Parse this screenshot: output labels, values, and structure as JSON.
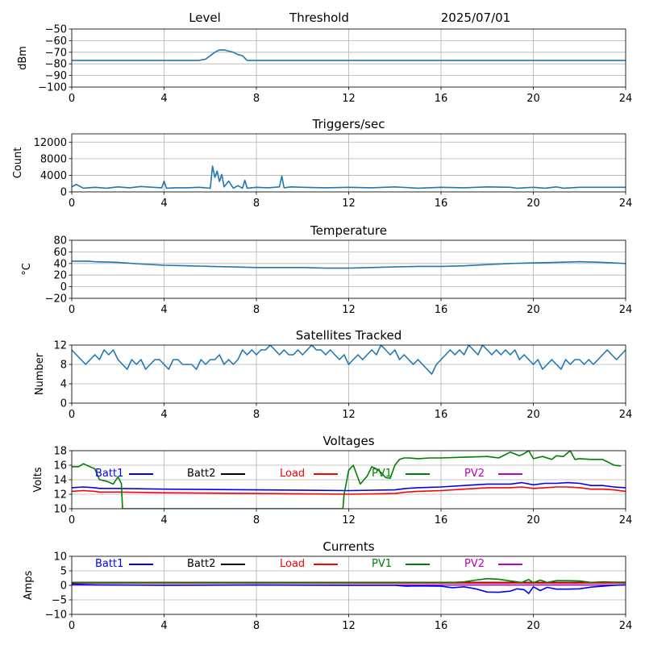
{
  "header": {
    "level": "Level",
    "threshold": "Threshold",
    "date": "2025/07/01"
  },
  "chart_data": [
    {
      "type": "line",
      "title": "",
      "xlabel": "",
      "ylabel": "dBm",
      "xlim": [
        0,
        24
      ],
      "ylim": [
        -100,
        -50
      ],
      "xticks": [
        "0",
        "4",
        "8",
        "12",
        "16",
        "20",
        "24"
      ],
      "yticks": [
        "−100",
        "−90",
        "−80",
        "−70",
        "−60",
        "−50"
      ],
      "grid": true,
      "series": [
        {
          "color": "#1f77b4",
          "x": [
            0,
            1,
            2,
            3,
            4,
            5,
            5.5,
            5.8,
            6.0,
            6.2,
            6.4,
            6.6,
            6.8,
            7.0,
            7.2,
            7.4,
            7.6,
            8,
            10,
            12,
            14,
            16,
            18,
            20,
            22,
            24
          ],
          "y": [
            -77,
            -77,
            -77,
            -77,
            -77,
            -77,
            -77,
            -76,
            -73,
            -70,
            -68,
            -68,
            -69,
            -70,
            -72,
            -73,
            -77,
            -77,
            -77,
            -77,
            -77,
            -77,
            -77,
            -77,
            -77,
            -77
          ]
        }
      ]
    },
    {
      "type": "line",
      "title": "Triggers/sec",
      "xlabel": "",
      "ylabel": "Count",
      "xlim": [
        0,
        24
      ],
      "ylim": [
        0,
        14000
      ],
      "xticks": [
        "0",
        "4",
        "8",
        "12",
        "16",
        "20",
        "24"
      ],
      "yticks": [
        "0",
        "4000",
        "8000",
        "12000"
      ],
      "grid": true,
      "series": [
        {
          "color": "#1f77b4",
          "x": [
            0,
            0.2,
            0.5,
            1,
            1.5,
            2,
            2.5,
            3,
            3.5,
            3.9,
            4.0,
            4.1,
            4.5,
            5,
            5.5,
            6.0,
            6.1,
            6.2,
            6.3,
            6.4,
            6.5,
            6.6,
            6.8,
            7.0,
            7.2,
            7.4,
            7.5,
            7.6,
            8,
            8.5,
            9.0,
            9.1,
            9.2,
            9.5,
            10,
            11,
            12,
            13,
            14,
            15,
            16,
            17,
            18,
            19,
            19.3,
            20,
            20.5,
            21,
            21.3,
            22,
            23,
            24
          ],
          "y": [
            1200,
            1800,
            900,
            1100,
            900,
            1200,
            1000,
            1300,
            1100,
            1000,
            2600,
            900,
            1000,
            1000,
            1100,
            900,
            6200,
            3500,
            5000,
            2500,
            4200,
            1200,
            2600,
            900,
            1500,
            900,
            2800,
            900,
            1100,
            1000,
            1200,
            3800,
            1000,
            1200,
            1100,
            1000,
            1100,
            1000,
            1200,
            900,
            1100,
            1000,
            1200,
            1100,
            900,
            1100,
            900,
            1200,
            900,
            1100,
            1100,
            1100
          ]
        }
      ]
    },
    {
      "type": "line",
      "title": "Temperature",
      "xlabel": "",
      "ylabel": "°C",
      "xlim": [
        0,
        24
      ],
      "ylim": [
        -20,
        80
      ],
      "xticks": [
        "0",
        "4",
        "8",
        "12",
        "16",
        "20",
        "24"
      ],
      "yticks": [
        "−20",
        "0",
        "20",
        "40",
        "60",
        "80"
      ],
      "grid": true,
      "series": [
        {
          "color": "#1f77b4",
          "x": [
            0,
            0.7,
            1,
            2,
            3,
            4,
            5,
            6,
            7,
            8,
            9,
            10,
            11,
            12,
            13,
            14,
            15,
            16,
            17,
            18,
            19,
            20,
            21,
            22,
            23,
            24
          ],
          "y": [
            44,
            44,
            43,
            42,
            39,
            37,
            36,
            35,
            34,
            33,
            33,
            33,
            32,
            32,
            33,
            34,
            35,
            35,
            36,
            38,
            40,
            41,
            42,
            43,
            42,
            40
          ]
        }
      ]
    },
    {
      "type": "line",
      "title": "Satellites Tracked",
      "xlabel": "",
      "ylabel": "Number",
      "xlim": [
        0,
        24
      ],
      "ylim": [
        0,
        12
      ],
      "xticks": [
        "0",
        "4",
        "8",
        "12",
        "16",
        "20",
        "24"
      ],
      "yticks": [
        "0",
        "4",
        "8",
        "12"
      ],
      "grid": true,
      "series": [
        {
          "color": "#1f77b4",
          "x": [
            0,
            0.2,
            0.4,
            0.6,
            0.8,
            1.0,
            1.2,
            1.4,
            1.6,
            1.8,
            2.0,
            2.2,
            2.4,
            2.6,
            2.8,
            3.0,
            3.2,
            3.4,
            3.6,
            3.8,
            4.0,
            4.2,
            4.4,
            4.6,
            4.8,
            5.0,
            5.2,
            5.4,
            5.6,
            5.8,
            6.0,
            6.2,
            6.4,
            6.6,
            6.8,
            7.0,
            7.2,
            7.4,
            7.6,
            7.8,
            8.0,
            8.2,
            8.4,
            8.6,
            8.8,
            9.0,
            9.2,
            9.4,
            9.6,
            9.8,
            10.0,
            10.2,
            10.4,
            10.6,
            10.8,
            11.0,
            11.2,
            11.4,
            11.6,
            11.8,
            12.0,
            12.2,
            12.4,
            12.6,
            12.8,
            13.0,
            13.2,
            13.4,
            13.6,
            13.8,
            14.0,
            14.2,
            14.4,
            14.6,
            14.8,
            15.0,
            15.2,
            15.4,
            15.6,
            15.8,
            16.0,
            16.2,
            16.4,
            16.6,
            16.8,
            17.0,
            17.2,
            17.4,
            17.6,
            17.8,
            18.0,
            18.2,
            18.4,
            18.6,
            18.8,
            19.0,
            19.2,
            19.4,
            19.6,
            19.8,
            20.0,
            20.2,
            20.4,
            20.6,
            20.8,
            21.0,
            21.2,
            21.4,
            21.6,
            21.8,
            22.0,
            22.2,
            22.4,
            22.6,
            22.8,
            23.0,
            23.2,
            23.4,
            23.6,
            23.8,
            24.0
          ],
          "y": [
            11,
            10,
            9,
            8,
            9,
            10,
            9,
            11,
            10,
            11,
            9,
            8,
            7,
            9,
            8,
            9,
            7,
            8,
            9,
            9,
            8,
            7,
            9,
            9,
            8,
            8,
            8,
            7,
            9,
            8,
            9,
            9,
            10,
            8,
            9,
            8,
            9,
            11,
            10,
            11,
            10,
            11,
            11,
            12,
            11,
            10,
            11,
            10,
            10,
            11,
            10,
            11,
            12,
            11,
            11,
            10,
            11,
            10,
            9,
            10,
            8,
            9,
            10,
            9,
            10,
            11,
            10,
            12,
            11,
            10,
            11,
            9,
            10,
            9,
            8,
            9,
            8,
            7,
            6,
            8,
            9,
            10,
            11,
            10,
            11,
            10,
            12,
            11,
            10,
            12,
            11,
            10,
            11,
            10,
            11,
            10,
            11,
            9,
            10,
            9,
            8,
            9,
            7,
            8,
            9,
            8,
            7,
            9,
            8,
            9,
            9,
            8,
            9,
            8,
            9,
            10,
            11,
            10,
            9,
            10,
            11
          ]
        }
      ]
    },
    {
      "type": "line",
      "title": "Voltages",
      "xlabel": "",
      "ylabel": "Volts",
      "xlim": [
        0,
        24
      ],
      "ylim": [
        10,
        18
      ],
      "xticks": [
        "0",
        "4",
        "8",
        "12",
        "16",
        "20",
        "24"
      ],
      "yticks": [
        "10",
        "12",
        "14",
        "16",
        "18"
      ],
      "grid": true,
      "legend": [
        "Batt1",
        "Batt2",
        "Load",
        "PV1",
        "PV2"
      ],
      "legend_colors": [
        "#0000ff",
        "#000000",
        "#ff0000",
        "#008000",
        "#bf00bf"
      ],
      "series": [
        {
          "name": "Batt1",
          "color": "#0000ff",
          "x": [
            0,
            0.5,
            1,
            1.2,
            2,
            4,
            8,
            12,
            14,
            14.5,
            15,
            16,
            17,
            18,
            19,
            19.5,
            20,
            20.5,
            21,
            21.5,
            22,
            22.5,
            23,
            23.5,
            24
          ],
          "y": [
            12.9,
            13.0,
            12.9,
            12.8,
            12.8,
            12.7,
            12.6,
            12.5,
            12.6,
            12.8,
            12.9,
            13.0,
            13.2,
            13.4,
            13.4,
            13.6,
            13.3,
            13.5,
            13.5,
            13.6,
            13.5,
            13.2,
            13.2,
            13.0,
            12.9
          ]
        },
        {
          "name": "Load",
          "color": "#ff0000",
          "x": [
            0,
            0.5,
            1,
            1.2,
            2,
            4,
            8,
            12,
            14,
            14.5,
            15,
            16,
            17,
            18,
            19,
            19.5,
            20,
            20.5,
            21,
            21.5,
            22,
            22.5,
            23,
            23.5,
            24
          ],
          "y": [
            12.4,
            12.5,
            12.4,
            12.3,
            12.3,
            12.2,
            12.1,
            12.0,
            12.1,
            12.3,
            12.4,
            12.5,
            12.7,
            12.9,
            12.9,
            13.0,
            12.8,
            12.9,
            13.0,
            13.0,
            12.9,
            12.7,
            12.7,
            12.6,
            12.4
          ]
        },
        {
          "name": "PV1",
          "color": "#008000",
          "x": [
            0,
            0.3,
            0.5,
            1.0,
            1.2,
            1.5,
            1.8,
            2.0,
            2.15,
            2.2,
            11.75,
            11.8,
            12.0,
            12.2,
            12.5,
            12.8,
            13.0,
            13.2,
            13.4,
            13.6,
            13.8,
            14.0,
            14.2,
            14.4,
            14.6,
            15.0,
            15.5,
            16.0,
            17.0,
            18.0,
            18.5,
            19.0,
            19.4,
            19.6,
            19.8,
            20.0,
            20.4,
            20.8,
            21.0,
            21.3,
            21.6,
            21.8,
            22.0,
            22.5,
            23.0,
            23.5,
            23.8
          ],
          "y": [
            15.8,
            15.8,
            16.2,
            15.5,
            14.0,
            13.8,
            13.4,
            14.4,
            13.5,
            10.0,
            10.0,
            12.0,
            15.3,
            16.0,
            13.4,
            14.5,
            15.8,
            15.5,
            15.0,
            14.3,
            14.2,
            16.0,
            16.8,
            17.0,
            17.0,
            16.9,
            17.0,
            17.0,
            17.1,
            17.2,
            17.0,
            17.8,
            17.3,
            17.6,
            18.0,
            16.9,
            17.2,
            16.8,
            17.3,
            17.2,
            18.0,
            16.8,
            16.9,
            16.8,
            16.8,
            16.0,
            15.9
          ]
        },
        {
          "name": "Batt2",
          "color": "#000000",
          "x": [],
          "y": []
        },
        {
          "name": "PV2",
          "color": "#bf00bf",
          "x": [],
          "y": []
        }
      ]
    },
    {
      "type": "line",
      "title": "Currents",
      "xlabel": "",
      "ylabel": "Amps",
      "xlim": [
        0,
        24
      ],
      "ylim": [
        -10,
        10
      ],
      "xticks": [
        "0",
        "4",
        "8",
        "12",
        "16",
        "20",
        "24"
      ],
      "yticks": [
        "−10",
        "−5",
        "0",
        "5",
        "10"
      ],
      "grid": true,
      "legend": [
        "Batt1",
        "Batt2",
        "Load",
        "PV1",
        "PV2"
      ],
      "legend_colors": [
        "#0000ff",
        "#000000",
        "#ff0000",
        "#008000",
        "#bf00bf"
      ],
      "series": [
        {
          "name": "Batt2",
          "color": "#000000",
          "x": [
            0,
            6,
            12,
            18,
            24
          ],
          "y": [
            1.0,
            1.0,
            1.0,
            1.0,
            1.0
          ]
        },
        {
          "name": "Load",
          "color": "#ff0000",
          "x": [
            0,
            6,
            12,
            18,
            24
          ],
          "y": [
            0.8,
            0.8,
            0.8,
            0.8,
            0.8
          ]
        },
        {
          "name": "PV2",
          "color": "#bf00bf",
          "x": [
            0,
            12,
            24
          ],
          "y": [
            0.1,
            0.1,
            0.1
          ]
        },
        {
          "name": "Batt1",
          "color": "#0000ff",
          "x": [
            0,
            0.5,
            1,
            2,
            4,
            8,
            12,
            14,
            14.5,
            15,
            16,
            16.5,
            17,
            17.5,
            18,
            18.5,
            19,
            19.3,
            19.6,
            19.8,
            20,
            20.3,
            20.6,
            21,
            21.5,
            22,
            22.5,
            23,
            23.5,
            24
          ],
          "y": [
            0.5,
            0.3,
            0.2,
            0.1,
            0.0,
            0.1,
            0.0,
            0.0,
            -0.3,
            -0.2,
            -0.3,
            -0.8,
            -0.5,
            -1.2,
            -2.3,
            -2.4,
            -2.0,
            -1.2,
            -1.5,
            -2.8,
            -0.5,
            -1.8,
            -0.7,
            -1.3,
            -1.3,
            -1.2,
            -0.6,
            -0.3,
            0.0,
            0.2
          ]
        },
        {
          "name": "PV1",
          "color": "#008000",
          "x": [
            0,
            2,
            4,
            8,
            12,
            14,
            16,
            16.5,
            17,
            17.5,
            18,
            18.5,
            19,
            19.5,
            19.8,
            20,
            20.3,
            20.6,
            21,
            21.5,
            22,
            22.5,
            23,
            23.5,
            24
          ],
          "y": [
            1.0,
            1.0,
            1.0,
            1.0,
            1.0,
            1.0,
            1.0,
            1.0,
            1.2,
            1.8,
            2.3,
            2.1,
            1.5,
            1.0,
            2.0,
            0.9,
            1.8,
            1.0,
            1.6,
            1.6,
            1.5,
            1.0,
            1.2,
            1.1,
            1.1
          ]
        }
      ]
    }
  ]
}
